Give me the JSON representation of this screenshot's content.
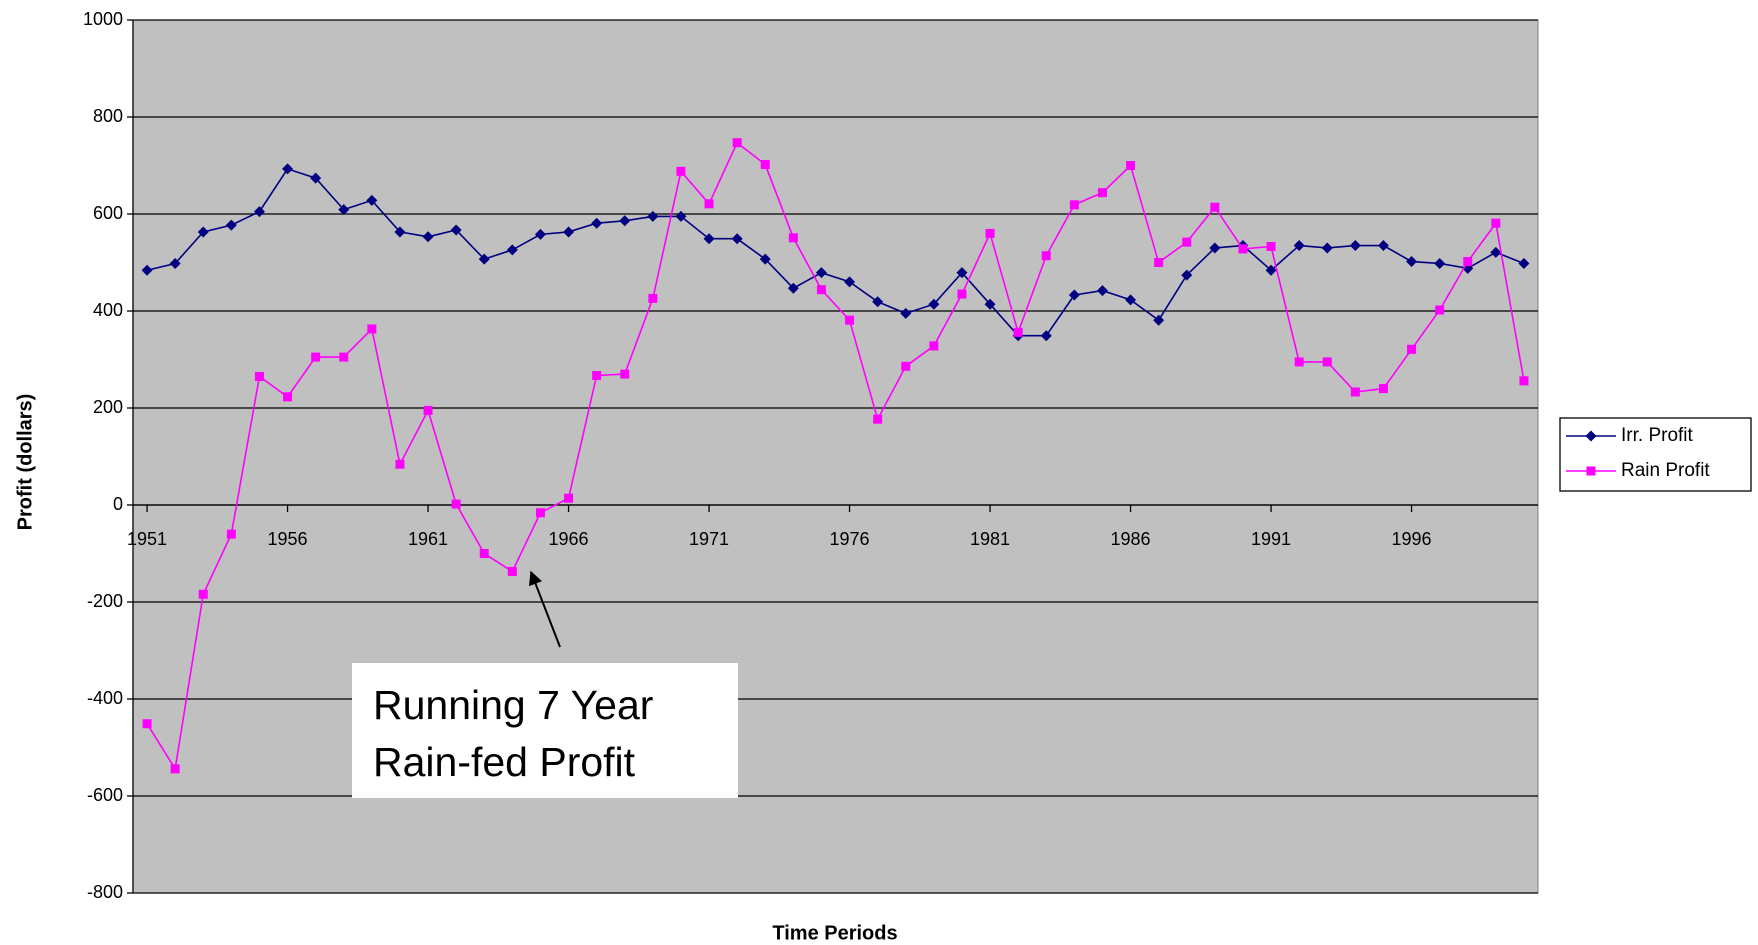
{
  "chart_data": {
    "type": "line",
    "x_label": "Time Periods",
    "y_label": "Profit (dollars)",
    "x": [
      1951,
      1952,
      1953,
      1954,
      1955,
      1956,
      1957,
      1958,
      1959,
      1960,
      1961,
      1962,
      1963,
      1964,
      1965,
      1966,
      1967,
      1968,
      1969,
      1970,
      1971,
      1972,
      1973,
      1974,
      1975,
      1976,
      1977,
      1978,
      1979,
      1980,
      1981,
      1982,
      1983,
      1984,
      1985,
      1986,
      1987,
      1988,
      1989,
      1990,
      1991,
      1992,
      1993,
      1994,
      1995,
      1996,
      1997,
      1998,
      1999,
      2000
    ],
    "xlim": [
      1950.5,
      2000.5
    ],
    "xticks": [
      1951,
      1956,
      1961,
      1966,
      1971,
      1976,
      1981,
      1986,
      1991,
      1996
    ],
    "ylim": [
      -800,
      1000
    ],
    "yticks": [
      -800,
      -600,
      -400,
      -200,
      0,
      200,
      400,
      600,
      800,
      1000
    ],
    "grid": true,
    "legend": "right",
    "series": [
      {
        "name": "Irr. Profit",
        "color": "#000080",
        "marker": "diamond",
        "values": [
          484,
          498,
          563,
          577,
          605,
          693,
          674,
          609,
          628,
          563,
          553,
          567,
          507,
          526,
          558,
          563,
          581,
          586,
          595,
          595,
          549,
          549,
          507,
          447,
          479,
          460,
          419,
          395,
          414,
          479,
          414,
          349,
          349,
          433,
          442,
          423,
          381,
          474,
          530,
          535,
          484,
          535,
          530,
          535,
          535,
          502,
          498,
          488,
          521,
          498
        ]
      },
      {
        "name": "Rain Profit",
        "color": "#ff00ff",
        "marker": "square",
        "values": [
          -451,
          -544,
          -184,
          -60,
          265,
          223,
          305,
          305,
          363,
          84,
          195,
          2,
          -100,
          -137,
          -16,
          14,
          267,
          270,
          426,
          688,
          621,
          747,
          702,
          551,
          444,
          381,
          177,
          286,
          328,
          435,
          560,
          356,
          514,
          619,
          644,
          700,
          500,
          542,
          614,
          528,
          533,
          295,
          295,
          233,
          240,
          321,
          402,
          502,
          581,
          256
        ]
      }
    ],
    "annotation": [
      "Running 7 Year",
      "Rain-fed Profit"
    ]
  }
}
